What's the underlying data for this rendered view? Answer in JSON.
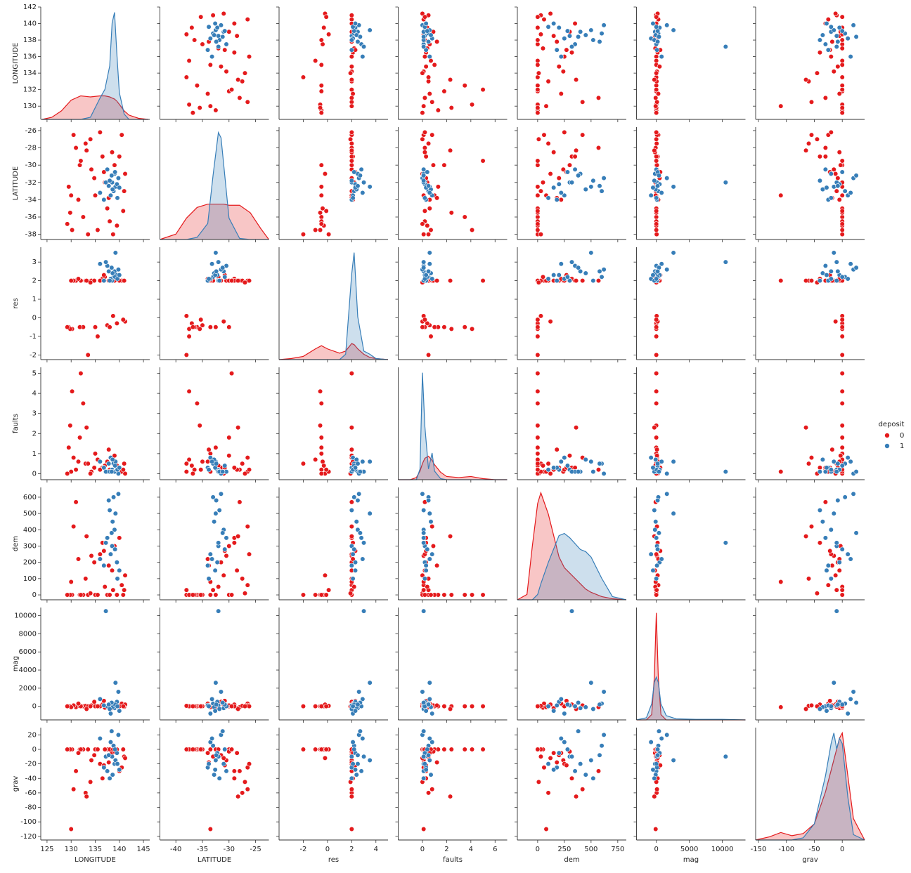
{
  "chart_data": {
    "type": "pairplot",
    "variables": [
      "LONGITUDE",
      "LATITUDE",
      "res",
      "faults",
      "dem",
      "mag",
      "grav"
    ],
    "hue": "deposit",
    "hue_levels": [
      0,
      1
    ],
    "colors": [
      "#e41a1c",
      "#377eb8"
    ],
    "axes": [
      {
        "xlim": [
          123.7,
          146.3
        ],
        "xticks": [
          125,
          130,
          135,
          140,
          145
        ],
        "ylim": [
          128.4,
          142
        ],
        "yticks": [
          130,
          132,
          134,
          136,
          138,
          140,
          142
        ]
      },
      {
        "xlim": [
          -43,
          -22.5
        ],
        "xticks": [
          -40,
          -35,
          -30,
          -25
        ],
        "ylim": [
          -38.6,
          -25.6
        ],
        "yticks": [
          -38,
          -36,
          -34,
          -32,
          -30,
          -28,
          -26
        ]
      },
      {
        "xlim": [
          -4,
          5
        ],
        "xticks": [
          -2,
          0,
          2,
          4
        ],
        "ylim": [
          -2.25,
          3.8
        ],
        "yticks": [
          -2,
          -1,
          0,
          1,
          2,
          3
        ]
      },
      {
        "xlim": [
          -2,
          7
        ],
        "xticks": [
          0,
          2,
          4,
          6
        ],
        "ylim": [
          -0.3,
          5.3
        ],
        "yticks": [
          0,
          1,
          2,
          3,
          4,
          5
        ]
      },
      {
        "xlim": [
          -190,
          830
        ],
        "xticks": [
          0,
          250,
          500,
          750
        ],
        "ylim": [
          -30,
          660
        ],
        "yticks": [
          0,
          100,
          200,
          300,
          400,
          500,
          600
        ]
      },
      {
        "xlim": [
          -3000,
          13500
        ],
        "xticks": [
          0,
          5000,
          10000
        ],
        "ylim": [
          -1500,
          10900
        ],
        "yticks": [
          0,
          2000,
          4000,
          6000,
          8000,
          10000
        ]
      },
      {
        "xlim": [
          -155,
          40
        ],
        "xticks": [
          -150,
          -100,
          -50,
          0
        ],
        "ylim": [
          -125,
          30
        ],
        "yticks": [
          -120,
          -100,
          -80,
          -60,
          -40,
          -20,
          0,
          20
        ]
      }
    ],
    "observations": [
      [
        129.5,
        -32.5,
        -0.5,
        1.3,
        0,
        0,
        0,
        0
      ],
      [
        130.2,
        -37.5,
        -0.6,
        4.1,
        0,
        0,
        0,
        0
      ],
      [
        131.0,
        -28.0,
        2.0,
        0.2,
        570,
        -100,
        -30,
        0
      ],
      [
        132.5,
        -36.0,
        -0.5,
        3.5,
        0,
        0,
        0,
        0
      ],
      [
        133.0,
        -27.5,
        2.0,
        0.5,
        100,
        50,
        -60,
        0
      ],
      [
        134.2,
        -30.5,
        2.0,
        0.1,
        240,
        100,
        -15,
        0
      ],
      [
        135.0,
        -33.5,
        -0.5,
        1.0,
        0,
        0,
        0,
        0
      ],
      [
        136.5,
        -29.0,
        2.1,
        0.3,
        320,
        200,
        -40,
        0
      ],
      [
        137.5,
        -35.0,
        -0.4,
        0.6,
        0,
        0,
        0,
        0
      ],
      [
        138.5,
        -28.5,
        2.0,
        0.2,
        150,
        -200,
        -5,
        0
      ],
      [
        139.5,
        -37.0,
        -0.3,
        0.4,
        0,
        0,
        0,
        0
      ],
      [
        140.5,
        -26.5,
        2.0,
        0.1,
        60,
        300,
        -25,
        0
      ],
      [
        141.0,
        -33.0,
        2.0,
        0.5,
        30,
        -50,
        -10,
        0
      ],
      [
        130.5,
        -26.5,
        2.0,
        0.8,
        420,
        100,
        -55,
        0
      ],
      [
        129.8,
        -35.5,
        -0.6,
        2.4,
        0,
        0,
        0,
        0
      ],
      [
        131.8,
        -30.0,
        -0.5,
        1.8,
        0,
        0,
        0,
        0
      ],
      [
        133.5,
        -38.0,
        -2.0,
        0.5,
        0,
        0,
        0,
        0
      ],
      [
        134.8,
        -31.5,
        2.0,
        0.3,
        200,
        500,
        -8,
        0
      ],
      [
        136.0,
        -26.2,
        2.0,
        0.2,
        250,
        0,
        -20,
        0
      ],
      [
        137.0,
        -32.0,
        2.2,
        0.4,
        50,
        -150,
        0,
        0
      ],
      [
        138.0,
        -36.5,
        -0.5,
        0.2,
        0,
        0,
        0,
        0
      ],
      [
        139.0,
        -30.0,
        2.0,
        0.9,
        300,
        100,
        -3,
        0
      ],
      [
        140.0,
        -29.0,
        2.0,
        0.3,
        350,
        0,
        -30,
        0
      ],
      [
        141.2,
        -31.0,
        -0.2,
        0.0,
        120,
        200,
        -12,
        0
      ],
      [
        132.0,
        -29.5,
        2.0,
        5.0,
        0,
        0,
        0,
        0
      ],
      [
        135.5,
        -37.5,
        -1.0,
        0.7,
        0,
        0,
        0,
        0
      ],
      [
        130.0,
        -33.5,
        2.0,
        0.1,
        80,
        -100,
        -110,
        0
      ],
      [
        131.5,
        -34.0,
        2.1,
        0.6,
        220,
        300,
        -5,
        0
      ],
      [
        134.0,
        -27.0,
        1.9,
        0.0,
        10,
        0,
        -45,
        0
      ],
      [
        137.8,
        -33.8,
        2.0,
        1.2,
        180,
        100,
        -18,
        0
      ],
      [
        129.2,
        -36.8,
        -0.5,
        0.0,
        0,
        0,
        0,
        0
      ],
      [
        133.2,
        -28.3,
        2.0,
        2.3,
        360,
        -300,
        -65,
        0
      ],
      [
        138.7,
        -38.0,
        0.1,
        0.1,
        30,
        50,
        0,
        0
      ],
      [
        136.8,
        -30.8,
        2.3,
        0.3,
        270,
        600,
        -22,
        0
      ],
      [
        140.8,
        -35.3,
        -0.1,
        0.2,
        0,
        0,
        0,
        0
      ],
      [
        138.5,
        -32.0,
        2.0,
        0.2,
        300,
        100,
        -10,
        1
      ],
      [
        139.0,
        -31.0,
        2.5,
        0.1,
        400,
        -200,
        -20,
        1
      ],
      [
        138.8,
        -33.0,
        2.2,
        0.5,
        600,
        300,
        5,
        1
      ],
      [
        139.2,
        -32.5,
        3.5,
        0.6,
        500,
        2600,
        -15,
        1
      ],
      [
        137.5,
        -30.5,
        2.8,
        0.1,
        350,
        0,
        -30,
        1
      ],
      [
        138.2,
        -33.5,
        2.1,
        0.8,
        250,
        -800,
        10,
        1
      ],
      [
        139.5,
        -32.2,
        2.3,
        0.2,
        200,
        500,
        -5,
        1
      ],
      [
        136.8,
        -34.0,
        2.0,
        0.3,
        180,
        100,
        -25,
        1
      ],
      [
        139.8,
        -31.5,
        2.6,
        0.0,
        620,
        1600,
        20,
        1
      ],
      [
        138.6,
        -32.8,
        2.4,
        0.7,
        450,
        -100,
        -35,
        1
      ],
      [
        137.2,
        -32.0,
        3.0,
        0.1,
        320,
        10500,
        -10,
        1
      ],
      [
        139.1,
        -30.8,
        2.2,
        0.4,
        280,
        200,
        0,
        1
      ],
      [
        138.0,
        -31.8,
        2.0,
        0.1,
        520,
        -300,
        -40,
        1
      ],
      [
        136.0,
        -33.2,
        2.9,
        0.6,
        220,
        800,
        15,
        1
      ],
      [
        139.6,
        -33.8,
        2.1,
        0.2,
        100,
        0,
        -20,
        1
      ],
      [
        138.4,
        -31.2,
        2.7,
        0.1,
        380,
        400,
        25,
        1
      ],
      [
        140.0,
        -32.6,
        2.3,
        0.3,
        150,
        -500,
        -28,
        1
      ],
      [
        137.8,
        -32.4,
        2.5,
        0.5,
        580,
        200,
        -8,
        1
      ]
    ],
    "kde_ylim": [
      0,
      1.05
    ],
    "kde": [
      {
        "x": [
          124,
          126,
          128,
          130,
          132,
          134,
          136,
          137,
          138,
          138.5,
          139,
          139.5,
          140,
          141,
          142,
          144,
          146
        ],
        "series": [
          {
            "values": [
              0,
              0.02,
              0.08,
              0.18,
              0.22,
              0.21,
              0.22,
              0.22,
              0.21,
              0.2,
              0.19,
              0.17,
              0.14,
              0.08,
              0.04,
              0.01,
              0
            ]
          },
          {
            "values": [
              0,
              0,
              0,
              0,
              0,
              0.02,
              0.2,
              0.28,
              0.5,
              0.9,
              1.0,
              0.6,
              0.25,
              0.05,
              0,
              0,
              0
            ]
          }
        ]
      },
      {
        "x": [
          -43,
          -40,
          -38,
          -36,
          -34,
          -33,
          -32,
          -31.5,
          -31,
          -30,
          -28,
          -26,
          -24,
          -22.5
        ],
        "series": [
          {
            "values": [
              0,
              0.05,
              0.2,
              0.3,
              0.33,
              0.33,
              0.33,
              0.33,
              0.33,
              0.32,
              0.32,
              0.25,
              0.1,
              0
            ]
          },
          {
            "values": [
              0,
              0,
              0,
              0.02,
              0.15,
              0.6,
              1.0,
              0.95,
              0.7,
              0.2,
              0.01,
              0,
              0,
              0
            ]
          }
        ]
      },
      {
        "x": [
          -4,
          -3,
          -2,
          -1,
          -0.5,
          0,
          1,
          1.5,
          2,
          2.2,
          2.5,
          3,
          3.5,
          4,
          5
        ],
        "series": [
          {
            "values": [
              0,
              0.01,
              0.03,
              0.1,
              0.13,
              0.1,
              0.06,
              0.08,
              0.15,
              0.14,
              0.1,
              0.05,
              0.02,
              0.01,
              0
            ]
          },
          {
            "values": [
              0,
              0,
              0,
              0,
              0,
              0,
              0,
              0.05,
              0.8,
              1.0,
              0.4,
              0.08,
              0.05,
              0.01,
              0
            ]
          }
        ]
      },
      {
        "x": [
          -2,
          -1,
          -0.5,
          -0.2,
          0,
          0.2,
          0.5,
          0.8,
          1,
          1.5,
          2,
          3,
          4,
          5,
          6,
          7
        ],
        "series": [
          {
            "values": [
              0,
              0,
              0.02,
              0.08,
              0.15,
              0.2,
              0.22,
              0.18,
              0.14,
              0.07,
              0.03,
              0.02,
              0.03,
              0.01,
              0,
              0
            ]
          },
          {
            "values": [
              0,
              0,
              0,
              0.1,
              1.0,
              0.5,
              0.1,
              0.25,
              0.08,
              0.01,
              0,
              0,
              0,
              0,
              0,
              0
            ]
          }
        ]
      },
      {
        "x": [
          -190,
          -100,
          -50,
          0,
          30,
          100,
          200,
          250,
          300,
          400,
          450,
          500,
          600,
          700,
          830
        ],
        "series": [
          {
            "values": [
              0,
              0.05,
              0.5,
              0.9,
              1.0,
              0.8,
              0.4,
              0.3,
              0.25,
              0.15,
              0.1,
              0.07,
              0.03,
              0.01,
              0
            ]
          },
          {
            "values": [
              0,
              0,
              0,
              0.05,
              0.15,
              0.35,
              0.6,
              0.62,
              0.58,
              0.47,
              0.45,
              0.4,
              0.2,
              0.03,
              0
            ]
          }
        ]
      },
      {
        "x": [
          -3000,
          -1500,
          -700,
          -300,
          0,
          300,
          700,
          1500,
          3000,
          6000,
          10000,
          13500
        ],
        "series": [
          {
            "values": [
              0,
              0,
              0.05,
              0.4,
              1.0,
              0.4,
              0.05,
              0,
              0,
              0,
              0,
              0
            ]
          },
          {
            "values": [
              0,
              0.02,
              0.15,
              0.35,
              0.4,
              0.35,
              0.15,
              0.04,
              0.01,
              0.005,
              0.005,
              0
            ]
          }
        ]
      },
      {
        "x": [
          -155,
          -130,
          -110,
          -90,
          -70,
          -50,
          -30,
          -20,
          -15,
          -10,
          -5,
          0,
          10,
          20,
          40
        ],
        "series": [
          {
            "values": [
              0,
              0.03,
              0.07,
              0.04,
              0.06,
              0.15,
              0.45,
              0.65,
              0.75,
              0.85,
              0.95,
              1.0,
              0.6,
              0.2,
              0
            ]
          },
          {
            "values": [
              0,
              0,
              0,
              0,
              0.02,
              0.15,
              0.6,
              0.9,
              1.0,
              0.85,
              0.95,
              0.9,
              0.4,
              0.05,
              0
            ]
          }
        ]
      }
    ]
  }
}
